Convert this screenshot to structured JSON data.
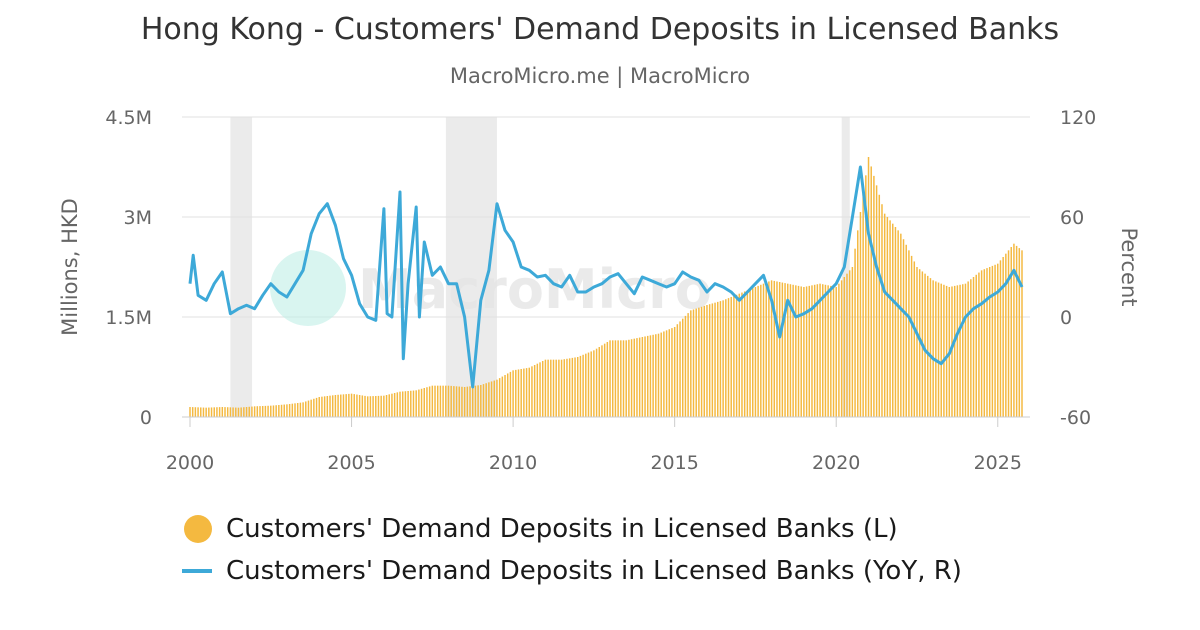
{
  "title": "Hong Kong - Customers' Demand Deposits in Licensed Banks",
  "subtitle": "MacroMicro.me | MacroMicro",
  "watermark": "MacroMicro",
  "colors": {
    "bars": "#F4B940",
    "line": "#3DA9D8",
    "recession": "#EBEBEB",
    "grid": "#E0E0E0",
    "axis_text": "#666666"
  },
  "chart_data": {
    "type": "bar+line",
    "x_start": 2000.0,
    "x_end": 2025.75,
    "xticks": [
      2000,
      2005,
      2010,
      2015,
      2020,
      2025
    ],
    "left_axis": {
      "label": "Millions, HKD",
      "ylim": [
        0,
        4500000
      ],
      "ticks": [
        0,
        1500000,
        3000000,
        4500000
      ],
      "tick_labels": [
        "0",
        "1.5M",
        "3M",
        "4.5M"
      ]
    },
    "right_axis": {
      "label": "Percent",
      "ylim": [
        -60,
        120
      ],
      "ticks": [
        -60,
        0,
        60,
        120
      ],
      "tick_labels": [
        "-60",
        "0",
        "60",
        "120"
      ]
    },
    "recessions": [
      [
        2001.25,
        2001.92
      ],
      [
        2007.92,
        2009.5
      ],
      [
        2020.17,
        2020.42
      ]
    ],
    "series": [
      {
        "name": "Customers' Demand Deposits in Licensed Banks (L)",
        "type": "bar",
        "axis": "left",
        "x": [
          2000.0,
          2000.5,
          2001.0,
          2001.5,
          2002.0,
          2002.5,
          2003.0,
          2003.5,
          2004.0,
          2004.5,
          2005.0,
          2005.5,
          2006.0,
          2006.5,
          2007.0,
          2007.5,
          2008.0,
          2008.5,
          2009.0,
          2009.5,
          2010.0,
          2010.5,
          2011.0,
          2011.5,
          2012.0,
          2012.5,
          2013.0,
          2013.5,
          2014.0,
          2014.5,
          2015.0,
          2015.5,
          2016.0,
          2016.5,
          2017.0,
          2017.5,
          2018.0,
          2018.5,
          2019.0,
          2019.5,
          2020.0,
          2020.5,
          2021.0,
          2021.5,
          2022.0,
          2022.5,
          2023.0,
          2023.5,
          2024.0,
          2024.5,
          2025.0,
          2025.5,
          2025.75
        ],
        "values": [
          150000,
          140000,
          150000,
          140000,
          160000,
          170000,
          190000,
          220000,
          300000,
          330000,
          350000,
          310000,
          320000,
          380000,
          400000,
          470000,
          470000,
          450000,
          480000,
          560000,
          700000,
          740000,
          860000,
          860000,
          900000,
          1000000,
          1150000,
          1150000,
          1200000,
          1250000,
          1350000,
          1600000,
          1680000,
          1750000,
          1850000,
          1950000,
          2050000,
          2000000,
          1950000,
          2000000,
          1950000,
          2250000,
          3900000,
          3050000,
          2750000,
          2250000,
          2050000,
          1950000,
          2000000,
          2200000,
          2300000,
          2600000,
          2500000
        ]
      },
      {
        "name": "Customers' Demand Deposits in Licensed Banks (YoY, R)",
        "type": "line",
        "axis": "right",
        "x": [
          2000.0,
          2000.1,
          2000.25,
          2000.5,
          2000.75,
          2001.0,
          2001.25,
          2001.5,
          2001.75,
          2002.0,
          2002.25,
          2002.5,
          2002.75,
          2003.0,
          2003.25,
          2003.5,
          2003.75,
          2004.0,
          2004.25,
          2004.5,
          2004.75,
          2005.0,
          2005.25,
          2005.5,
          2005.75,
          2006.0,
          2006.1,
          2006.25,
          2006.5,
          2006.6,
          2006.75,
          2007.0,
          2007.1,
          2007.25,
          2007.5,
          2007.75,
          2008.0,
          2008.25,
          2008.5,
          2008.75,
          2009.0,
          2009.25,
          2009.5,
          2009.75,
          2010.0,
          2010.25,
          2010.5,
          2010.75,
          2011.0,
          2011.25,
          2011.5,
          2011.75,
          2012.0,
          2012.25,
          2012.5,
          2012.75,
          2013.0,
          2013.25,
          2013.5,
          2013.75,
          2014.0,
          2014.25,
          2014.5,
          2014.75,
          2015.0,
          2015.25,
          2015.5,
          2015.75,
          2016.0,
          2016.25,
          2016.5,
          2016.75,
          2017.0,
          2017.25,
          2017.5,
          2017.75,
          2018.0,
          2018.25,
          2018.5,
          2018.75,
          2019.0,
          2019.25,
          2019.5,
          2019.75,
          2020.0,
          2020.25,
          2020.5,
          2020.75,
          2021.0,
          2021.25,
          2021.5,
          2021.75,
          2022.0,
          2022.25,
          2022.5,
          2022.75,
          2023.0,
          2023.25,
          2023.5,
          2023.75,
          2024.0,
          2024.25,
          2024.5,
          2024.75,
          2025.0,
          2025.25,
          2025.5,
          2025.75
        ],
        "values": [
          20,
          37,
          13,
          10,
          20,
          27,
          2,
          5,
          7,
          5,
          13,
          20,
          15,
          12,
          20,
          28,
          50,
          62,
          68,
          55,
          35,
          25,
          8,
          0,
          -2,
          65,
          2,
          0,
          75,
          -25,
          20,
          66,
          0,
          45,
          25,
          30,
          20,
          20,
          0,
          -42,
          10,
          28,
          68,
          52,
          45,
          30,
          28,
          24,
          25,
          20,
          18,
          25,
          15,
          15,
          18,
          20,
          24,
          26,
          20,
          14,
          24,
          22,
          20,
          18,
          20,
          27,
          24,
          22,
          15,
          20,
          18,
          15,
          10,
          15,
          20,
          25,
          10,
          -12,
          10,
          0,
          2,
          5,
          10,
          15,
          20,
          30,
          60,
          90,
          50,
          30,
          15,
          10,
          5,
          0,
          -10,
          -20,
          -25,
          -28,
          -22,
          -10,
          0,
          5,
          8,
          12,
          15,
          20,
          28,
          18
        ]
      }
    ],
    "legend": "bottom"
  },
  "legend": {
    "bars_label": "Customers' Demand Deposits in Licensed Banks (L)",
    "line_label": "Customers' Demand Deposits in Licensed Banks (YoY, R)"
  }
}
